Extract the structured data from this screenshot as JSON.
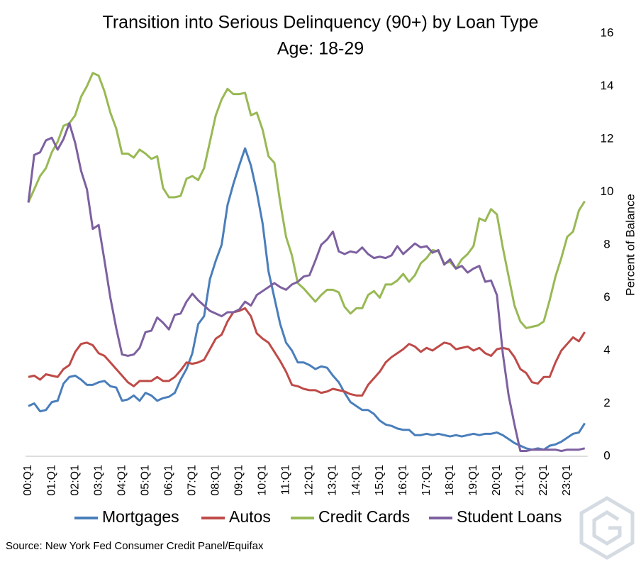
{
  "chart_data": {
    "type": "line",
    "title": "Transition into Serious Delinquency (90+) by Loan Type",
    "subtitle": "Age: 18-29",
    "y_label": "Percent of Balance",
    "source": "Source: New York Fed Consumer Credit Panel/Equifax",
    "categories": [
      "00:Q1",
      null,
      null,
      null,
      "01:Q1",
      null,
      null,
      null,
      "02:Q1",
      null,
      null,
      null,
      "03:Q1",
      null,
      null,
      null,
      "04:Q1",
      null,
      null,
      null,
      "05:Q1",
      null,
      null,
      null,
      "06:Q1",
      null,
      null,
      null,
      "07:Q1",
      null,
      null,
      null,
      "08:Q1",
      null,
      null,
      null,
      "09:Q1",
      null,
      null,
      null,
      "10:Q1",
      null,
      null,
      null,
      "11:Q1",
      null,
      null,
      null,
      "12:Q1",
      null,
      null,
      null,
      "13:Q1",
      null,
      null,
      null,
      "14:Q1",
      null,
      null,
      null,
      "15:Q1",
      null,
      null,
      null,
      "16:Q1",
      null,
      null,
      null,
      "17:Q1",
      null,
      null,
      null,
      "18:Q1",
      null,
      null,
      null,
      "19:Q1",
      null,
      null,
      null,
      "20:Q1",
      null,
      null,
      null,
      "21:Q1",
      null,
      null,
      null,
      "22:Q1",
      null,
      null,
      null,
      "23:Q1",
      null,
      null,
      null
    ],
    "series": [
      {
        "name": "Mortgages",
        "color": "#4a7ebb",
        "values": [
          1.9,
          2.0,
          1.7,
          1.75,
          2.05,
          2.1,
          2.75,
          3.0,
          3.05,
          2.9,
          2.7,
          2.7,
          2.8,
          2.85,
          2.65,
          2.6,
          2.1,
          2.15,
          2.3,
          2.1,
          2.4,
          2.3,
          2.1,
          2.2,
          2.25,
          2.4,
          2.9,
          3.3,
          3.9,
          5.0,
          5.3,
          6.7,
          7.4,
          8.0,
          9.5,
          10.3,
          11.0,
          11.65,
          11.0,
          10.0,
          8.8,
          7.0,
          6.0,
          5.0,
          4.3,
          4.0,
          3.55,
          3.55,
          3.45,
          3.3,
          3.4,
          3.35,
          3.05,
          2.8,
          2.4,
          2.05,
          1.9,
          1.75,
          1.75,
          1.6,
          1.35,
          1.2,
          1.15,
          1.05,
          1.0,
          1.0,
          0.8,
          0.8,
          0.85,
          0.8,
          0.85,
          0.8,
          0.75,
          0.8,
          0.75,
          0.8,
          0.85,
          0.8,
          0.85,
          0.85,
          0.9,
          0.8,
          0.65,
          0.5,
          0.4,
          0.3,
          0.25,
          0.3,
          0.25,
          0.4,
          0.45,
          0.55,
          0.7,
          0.85,
          0.9,
          1.25
        ]
      },
      {
        "name": "Autos",
        "color": "#be4b48",
        "values": [
          3.0,
          3.05,
          2.9,
          3.1,
          3.05,
          3.0,
          3.3,
          3.45,
          3.95,
          4.25,
          4.3,
          4.2,
          3.9,
          3.8,
          3.55,
          3.3,
          3.05,
          2.8,
          2.65,
          2.85,
          2.85,
          2.85,
          3.0,
          2.85,
          2.85,
          3.0,
          3.25,
          3.55,
          3.5,
          3.55,
          3.65,
          4.05,
          4.45,
          4.6,
          5.1,
          5.45,
          5.5,
          5.6,
          5.3,
          4.65,
          4.45,
          4.3,
          3.95,
          3.6,
          3.2,
          2.7,
          2.65,
          2.55,
          2.5,
          2.5,
          2.4,
          2.45,
          2.55,
          2.5,
          2.45,
          2.35,
          2.3,
          2.3,
          2.7,
          2.95,
          3.2,
          3.55,
          3.75,
          3.9,
          4.05,
          4.25,
          4.15,
          3.95,
          4.1,
          4.0,
          4.15,
          4.3,
          4.25,
          4.05,
          4.1,
          4.15,
          4.0,
          4.1,
          3.9,
          3.8,
          4.05,
          4.1,
          4.05,
          3.75,
          3.3,
          3.15,
          2.8,
          2.75,
          3.0,
          3.0,
          3.55,
          4.0,
          4.25,
          4.5,
          4.35,
          4.7
        ]
      },
      {
        "name": "Credit Cards",
        "color": "#98b954",
        "values": [
          9.6,
          10.1,
          10.6,
          10.9,
          11.5,
          11.9,
          12.5,
          12.6,
          12.9,
          13.6,
          14.0,
          14.5,
          14.4,
          13.8,
          13.0,
          12.4,
          11.45,
          11.45,
          11.3,
          11.6,
          11.45,
          11.25,
          11.35,
          10.15,
          9.8,
          9.8,
          9.85,
          10.5,
          10.6,
          10.45,
          10.9,
          11.9,
          12.9,
          13.5,
          13.9,
          13.7,
          13.7,
          13.75,
          12.9,
          13.0,
          12.35,
          11.35,
          11.1,
          9.6,
          8.3,
          7.6,
          6.55,
          6.35,
          6.1,
          5.85,
          6.1,
          6.3,
          6.3,
          6.2,
          5.65,
          5.4,
          5.6,
          5.6,
          6.1,
          6.25,
          6.0,
          6.5,
          6.5,
          6.65,
          6.9,
          6.6,
          6.85,
          7.3,
          7.5,
          7.8,
          7.75,
          7.3,
          7.35,
          7.1,
          7.45,
          7.65,
          7.95,
          9.0,
          8.9,
          9.35,
          9.15,
          7.9,
          6.8,
          5.7,
          5.1,
          4.85,
          4.9,
          4.95,
          5.1,
          5.9,
          6.8,
          7.5,
          8.3,
          8.5,
          9.3,
          9.65
        ]
      },
      {
        "name": "Student Loans",
        "color": "#7d60a0",
        "values": [
          9.6,
          11.4,
          11.5,
          11.95,
          12.05,
          11.6,
          12.0,
          12.6,
          11.85,
          10.8,
          10.1,
          8.6,
          8.75,
          7.4,
          6.0,
          4.85,
          3.85,
          3.8,
          3.85,
          4.1,
          4.7,
          4.75,
          5.25,
          5.05,
          4.8,
          5.35,
          5.4,
          5.85,
          6.15,
          5.9,
          5.7,
          5.5,
          5.4,
          5.3,
          5.45,
          5.45,
          5.55,
          5.85,
          5.7,
          6.1,
          6.25,
          6.4,
          6.55,
          6.4,
          6.3,
          6.5,
          6.6,
          6.8,
          6.85,
          7.4,
          8.0,
          8.2,
          8.5,
          7.75,
          7.65,
          7.75,
          7.7,
          7.9,
          7.65,
          7.5,
          7.55,
          7.5,
          7.6,
          7.95,
          7.65,
          7.85,
          8.05,
          7.9,
          7.95,
          7.7,
          7.8,
          7.25,
          7.45,
          7.1,
          7.2,
          6.95,
          7.1,
          7.2,
          6.6,
          6.65,
          6.1,
          3.9,
          2.3,
          1.2,
          0.2,
          0.2,
          0.25,
          0.25,
          0.25,
          0.25,
          0.25,
          0.2,
          0.25,
          0.25,
          0.25,
          0.3
        ]
      }
    ],
    "ylim": [
      0,
      16
    ],
    "yticks": [
      0,
      2,
      4,
      6,
      8,
      10,
      12,
      14,
      16
    ],
    "y_axis_side": "right",
    "grid": false,
    "legend": "bottom"
  }
}
